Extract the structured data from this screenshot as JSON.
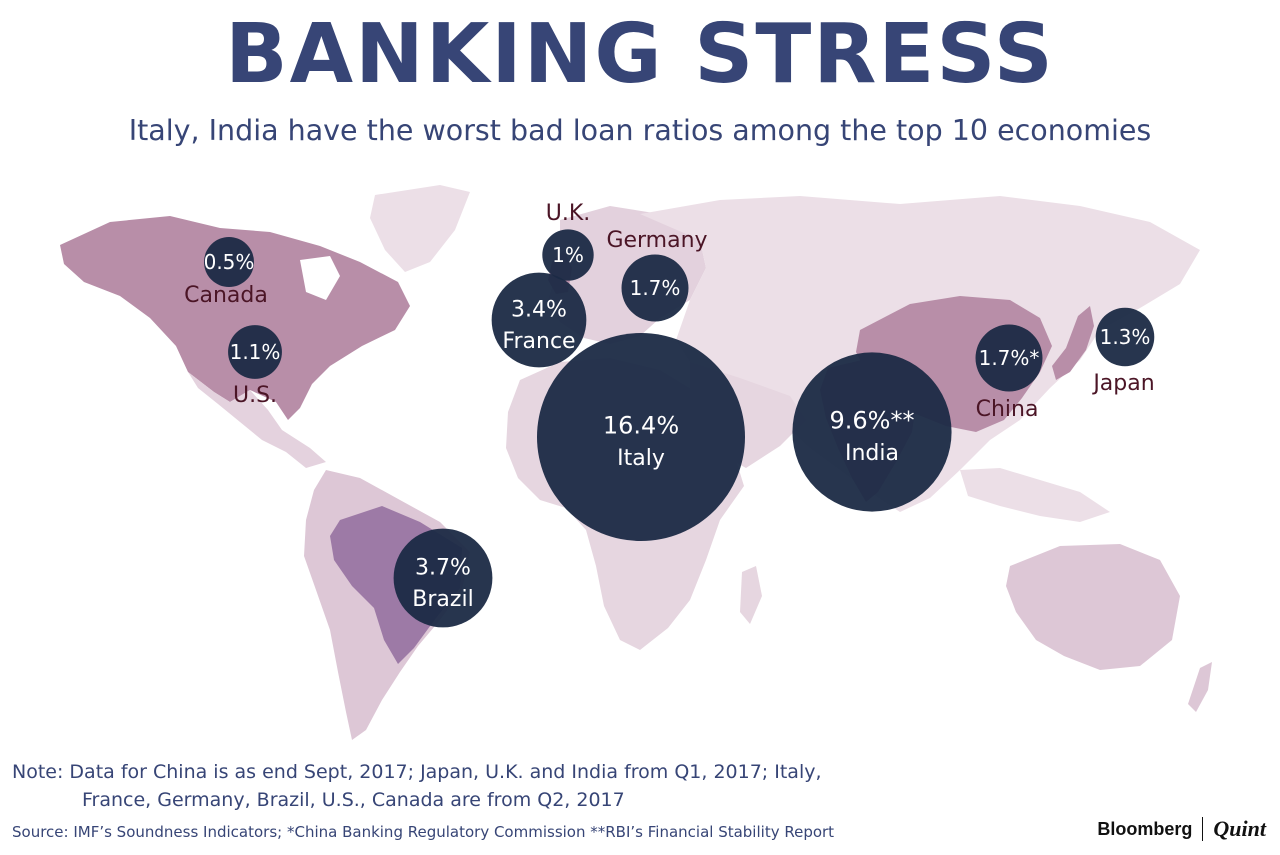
{
  "header": {
    "title": "BANKING STRESS",
    "subtitle": "Italy, India have the worst bad loan ratios among the top 10 economies"
  },
  "chart_data": {
    "type": "bubble-map",
    "metric": "bad loan ratio (%)",
    "points": [
      {
        "country": "Canada",
        "label": "Canada",
        "value_label": "0.5%",
        "value": 0.5
      },
      {
        "country": "U.K.",
        "label": "U.K.",
        "value_label": "1%",
        "value": 1.0
      },
      {
        "country": "Germany",
        "label": "Germany",
        "value_label": "1.7%",
        "value": 1.7
      },
      {
        "country": "France",
        "label": "France",
        "value_label": "3.4%",
        "value": 3.4
      },
      {
        "country": "U.S.",
        "label": "U.S.",
        "value_label": "1.1%",
        "value": 1.1
      },
      {
        "country": "Italy",
        "label": "Italy",
        "value_label": "16.4%",
        "value": 16.4
      },
      {
        "country": "India",
        "label": "India",
        "value_label": "9.6%**",
        "value": 9.6
      },
      {
        "country": "China",
        "label": "China",
        "value_label": "1.7%*",
        "value": 1.7
      },
      {
        "country": "Japan",
        "label": "Japan",
        "value_label": "1.3%",
        "value": 1.3
      },
      {
        "country": "Brazil",
        "label": "Brazil",
        "value_label": "3.7%",
        "value": 3.7
      }
    ],
    "colors": {
      "bubble": "#1b2a44",
      "land": "#e9dbe4",
      "highlight_land": "#b88ea8",
      "brazil_land": "#9d7aa6",
      "outside_label": "#4b1526",
      "text": "#374576"
    }
  },
  "footer": {
    "note_line1": "Note: Data for China is as end Sept, 2017; Japan, U.K. and India from Q1, 2017; Italy,",
    "note_line2": "France, Germany, Brazil, U.S., Canada are from Q2, 2017",
    "source": "Source: IMF’s Soundness Indicators; *China Banking Regulatory Commission **RBI’s Financial Stability Report",
    "logo_left": "Bloomberg",
    "logo_right": "Quint"
  }
}
